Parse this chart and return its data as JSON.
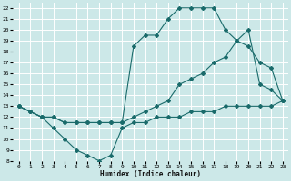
{
  "xlabel": "Humidex (Indice chaleur)",
  "bg_color": "#cce8e8",
  "grid_color": "#ffffff",
  "line_color": "#1a6b6b",
  "xlim": [
    -0.5,
    23.5
  ],
  "ylim": [
    8,
    22.5
  ],
  "xticks": [
    0,
    1,
    2,
    3,
    4,
    5,
    6,
    7,
    8,
    9,
    10,
    11,
    12,
    13,
    14,
    15,
    16,
    17,
    18,
    19,
    20,
    21,
    22,
    23
  ],
  "yticks": [
    8,
    9,
    10,
    11,
    12,
    13,
    14,
    15,
    16,
    17,
    18,
    19,
    20,
    21,
    22
  ],
  "line1_x": [
    0,
    1,
    2,
    3,
    4,
    5,
    6,
    7,
    8,
    9,
    10,
    11,
    12,
    13,
    14,
    15,
    16,
    17,
    18,
    19,
    20,
    21,
    22,
    23
  ],
  "line1_y": [
    13,
    12.5,
    12,
    11,
    10,
    9,
    8.5,
    8,
    8.5,
    11,
    11.5,
    11.5,
    12,
    12,
    12,
    12.5,
    12.5,
    12.5,
    13,
    13,
    13,
    13,
    13,
    13.5
  ],
  "line2_x": [
    0,
    1,
    2,
    3,
    4,
    5,
    6,
    7,
    8,
    9,
    10,
    11,
    12,
    13,
    14,
    15,
    16,
    17,
    18,
    19,
    20,
    21,
    22,
    23
  ],
  "line2_y": [
    13,
    12.5,
    12,
    12,
    11.5,
    11.5,
    11.5,
    11.5,
    11.5,
    11.5,
    12,
    12.5,
    13,
    13.5,
    15,
    15.5,
    16,
    17,
    17.5,
    19,
    18.5,
    17,
    16.5,
    13.5
  ],
  "line3_x": [
    0,
    1,
    2,
    3,
    4,
    5,
    6,
    7,
    8,
    9,
    10,
    11,
    12,
    13,
    14,
    15,
    16,
    17,
    18,
    19,
    20,
    21,
    22,
    23
  ],
  "line3_y": [
    13,
    12.5,
    12,
    12,
    11.5,
    11.5,
    11.5,
    11.5,
    11.5,
    11.5,
    18.5,
    19.5,
    19.5,
    21,
    22,
    22,
    22,
    22,
    20,
    19,
    20,
    15,
    14.5,
    13.5
  ]
}
